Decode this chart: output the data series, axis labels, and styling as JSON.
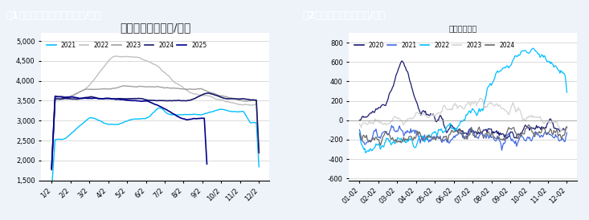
{
  "fig1_title": "图1：山东沥青现货价格（元/吨）",
  "fig1_inner_title": "山东现货价格（元/吨）",
  "fig2_title": "图2：山东沥青基差（元/吨）",
  "fig2_inner_title": "山东沥青基差",
  "header_bg": "#2E5FA3",
  "header_text_color": "#FFFFFF",
  "plot_bg": "#FFFFFF",
  "fig_bg": "#EEF3FA",
  "fig1_ylim": [
    1500,
    5200
  ],
  "fig1_yticks": [
    1500,
    2000,
    2500,
    3000,
    3500,
    4000,
    4500,
    5000
  ],
  "fig1_xticks": [
    "1/2",
    "2/2",
    "3/2",
    "4/2",
    "5/2",
    "6/2",
    "7/2",
    "8/2",
    "9/2",
    "10/2",
    "11/2",
    "12/2"
  ],
  "fig2_ylim": [
    -620,
    900
  ],
  "fig2_yticks": [
    -600,
    -400,
    -200,
    0,
    200,
    400,
    600,
    800
  ],
  "fig2_xticks": [
    "01-02",
    "02-02",
    "03-02",
    "04-02",
    "05-02",
    "06-02",
    "07-02",
    "08-02",
    "09-02",
    "10-02",
    "11-02",
    "12-02"
  ],
  "colors_fig1": {
    "2021": "#00BFFF",
    "2022": "#C0C0C0",
    "2023": "#A0A0A0",
    "2024": "#1A1A6E",
    "2025": "#00008B"
  },
  "colors_fig2": {
    "2020": "#1A1A6E",
    "2021": "#4169E1",
    "2022": "#00BFFF",
    "2023": "#D3D3D3",
    "2024": "#696969"
  }
}
